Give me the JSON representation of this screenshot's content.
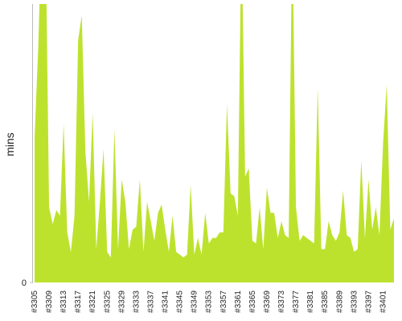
{
  "chart_data": {
    "type": "area",
    "ylabel": "mins",
    "color": "#bde22e",
    "ylim": [
      0,
      100
    ],
    "yticks": [
      0
    ],
    "categories": [
      "#3305",
      null,
      null,
      null,
      "#3309",
      null,
      null,
      null,
      "#3313",
      null,
      null,
      null,
      "#3317",
      null,
      null,
      null,
      "#3321",
      null,
      null,
      null,
      "#3325",
      null,
      null,
      null,
      "#3329",
      null,
      null,
      null,
      "#3333",
      null,
      null,
      null,
      "#3337",
      null,
      null,
      null,
      "#3341",
      null,
      null,
      null,
      "#3345",
      null,
      null,
      null,
      "#3349",
      null,
      null,
      null,
      "#3353",
      null,
      null,
      null,
      "#3357",
      null,
      null,
      null,
      "#3361",
      null,
      null,
      null,
      "#3365",
      null,
      null,
      null,
      "#3369",
      null,
      null,
      null,
      "#3373",
      null,
      null,
      null,
      "#3377",
      null,
      null,
      null,
      "#3381",
      null,
      null,
      null,
      "#3385",
      null,
      null,
      null,
      "#3389",
      null,
      null,
      null,
      "#3393",
      null,
      null,
      null,
      "#3397",
      null,
      null,
      null,
      "#3401",
      null,
      null,
      null
    ],
    "values": [
      52,
      84,
      130,
      130,
      27,
      21,
      26,
      24,
      57,
      18,
      11,
      24,
      87,
      96,
      47,
      29,
      61,
      12,
      29,
      48,
      11,
      9,
      55,
      12,
      37,
      29,
      12,
      19,
      20,
      37,
      11,
      29,
      22,
      15,
      25,
      28,
      19,
      11,
      24,
      11,
      10,
      9,
      10,
      35,
      10,
      16,
      10,
      25,
      14,
      16,
      16,
      18,
      18,
      64,
      32,
      31,
      24,
      130,
      38,
      41,
      15,
      14,
      27,
      12,
      34,
      25,
      25,
      16,
      22,
      17,
      16,
      130,
      27,
      15,
      17,
      16,
      15,
      14,
      70,
      12,
      12,
      22,
      17,
      15,
      18,
      33,
      17,
      16,
      11,
      12,
      44,
      16,
      37,
      19,
      27,
      17,
      50,
      71,
      19,
      23
    ]
  }
}
